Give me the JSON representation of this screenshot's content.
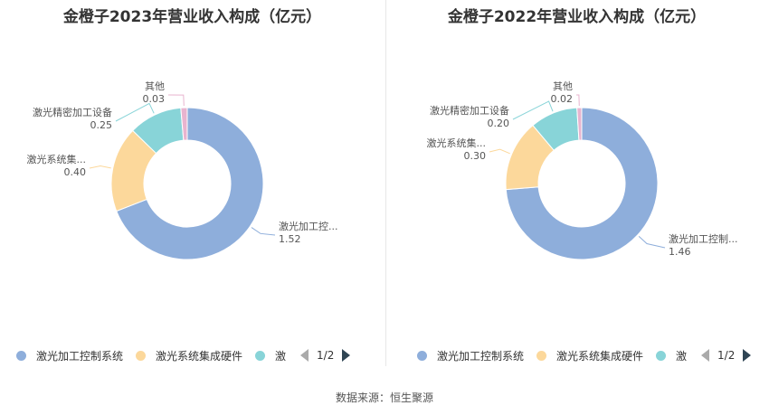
{
  "chart_data": [
    {
      "type": "pie",
      "title": "金橙子2023年营业收入构成（亿元）",
      "slices": [
        {
          "name": "激光加工控制系统",
          "label": "激光加工控...",
          "value": 1.52,
          "value_text": "1.52",
          "color": "#8eaedb"
        },
        {
          "name": "激光系统集成硬件",
          "label": "激光系统集...",
          "value": 0.4,
          "value_text": "0.40",
          "color": "#fcd89b"
        },
        {
          "name": "激光精密加工设备",
          "label": "激光精密加工设备",
          "value": 0.25,
          "value_text": "0.25",
          "color": "#88d4d8"
        },
        {
          "name": "其他",
          "label": "其他",
          "value": 0.03,
          "value_text": "0.03",
          "color": "#e8b4cf"
        }
      ],
      "legend": {
        "items": [
          "激光加工控制系统",
          "激光系统集成硬件",
          "激光精密加工设备"
        ],
        "page": "1/2",
        "placement": "bottom"
      }
    },
    {
      "type": "pie",
      "title": "金橙子2022年营业收入构成（亿元）",
      "slices": [
        {
          "name": "激光加工控制系统",
          "label": "激光加工控制...",
          "value": 1.46,
          "value_text": "1.46",
          "color": "#8eaedb"
        },
        {
          "name": "激光系统集成硬件",
          "label": "激光系统集...",
          "value": 0.3,
          "value_text": "0.30",
          "color": "#fcd89b"
        },
        {
          "name": "激光精密加工设备",
          "label": "激光精密加工设备",
          "value": 0.2,
          "value_text": "0.20",
          "color": "#88d4d8"
        },
        {
          "name": "其他",
          "label": "其他",
          "value": 0.02,
          "value_text": "0.02",
          "color": "#e8b4cf"
        }
      ],
      "legend": {
        "items": [
          "激光加工控制系统",
          "激光系统集成硬件",
          "激光精密加工设备"
        ],
        "page": "1/2",
        "placement": "bottom"
      }
    }
  ],
  "source": "数据来源：恒生聚源"
}
